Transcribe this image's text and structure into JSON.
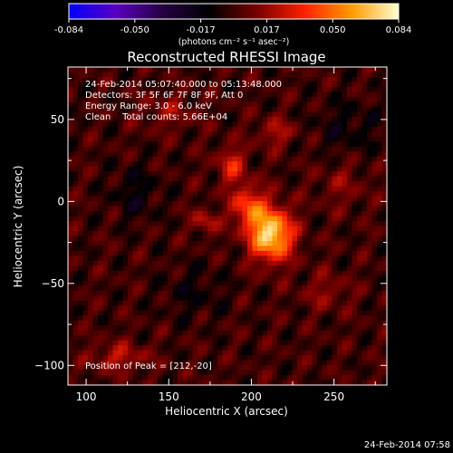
{
  "chart_data": {
    "type": "heatmap",
    "title": "Reconstructed RHESSI Image",
    "xlabel": "Heliocentric X (arcsec)",
    "ylabel": "Heliocentric Y (arcsec)",
    "xlim": [
      89,
      282
    ],
    "ylim": [
      -112,
      82
    ],
    "x_ticks": [
      100,
      150,
      200,
      250
    ],
    "y_ticks": [
      -100,
      -50,
      0,
      50
    ],
    "colorbar": {
      "min": -0.084,
      "max": 0.084,
      "ticks": [
        "-0.084",
        "-0.050",
        "-0.017",
        "0.017",
        "0.050",
        "0.084"
      ],
      "unit_label": "(photons cm⁻² s⁻¹ asec⁻²)",
      "colors": [
        "#0000ff",
        "#5a00c0",
        "#240040",
        "#000000",
        "#7a0000",
        "#ff2000",
        "#ff9a00",
        "#ffffd0"
      ]
    },
    "annotations": [
      "24-Feb-2014 05:07:40.000 to 05:13:48.000",
      "Detectors: 3F 5F 6F 7F 8F 9F, Att 0",
      "Energy Range: 3.0 - 6.0 keV",
      "Clean    Total counts: 5.66E+04"
    ],
    "peak_label": "Position of Peak = [212,-20]",
    "peak": {
      "x": 212,
      "y": -20,
      "value": 0.084
    },
    "sources": [
      {
        "x": 212,
        "y": -20,
        "sx": 9,
        "sy": 11,
        "amp": 0.078
      },
      {
        "x": 198,
        "y": -3,
        "sx": 7,
        "sy": 9,
        "amp": 0.04
      },
      {
        "x": 188,
        "y": 22,
        "sx": 6,
        "sy": 8,
        "amp": 0.03
      },
      {
        "x": 172,
        "y": -12,
        "sx": 5,
        "sy": 5,
        "amp": 0.024
      },
      {
        "x": 215,
        "y": 42,
        "sx": 8,
        "sy": 6,
        "amp": 0.02
      },
      {
        "x": 120,
        "y": -95,
        "sx": 12,
        "sy": 6,
        "amp": 0.022
      },
      {
        "x": 245,
        "y": -55,
        "sx": 10,
        "sy": 8,
        "amp": 0.014
      },
      {
        "x": 150,
        "y": 55,
        "sx": 12,
        "sy": 8,
        "amp": 0.014
      },
      {
        "x": 255,
        "y": 10,
        "sx": 10,
        "sy": 10,
        "amp": 0.012
      },
      {
        "x": 130,
        "y": 5,
        "sx": 10,
        "sy": 12,
        "amp": -0.014
      },
      {
        "x": 258,
        "y": 45,
        "sx": 14,
        "sy": 12,
        "amp": -0.012
      },
      {
        "x": 165,
        "y": -55,
        "sx": 14,
        "sy": 12,
        "amp": -0.01
      }
    ]
  },
  "footer": {
    "timestamp": "24-Feb-2014 07:58"
  }
}
